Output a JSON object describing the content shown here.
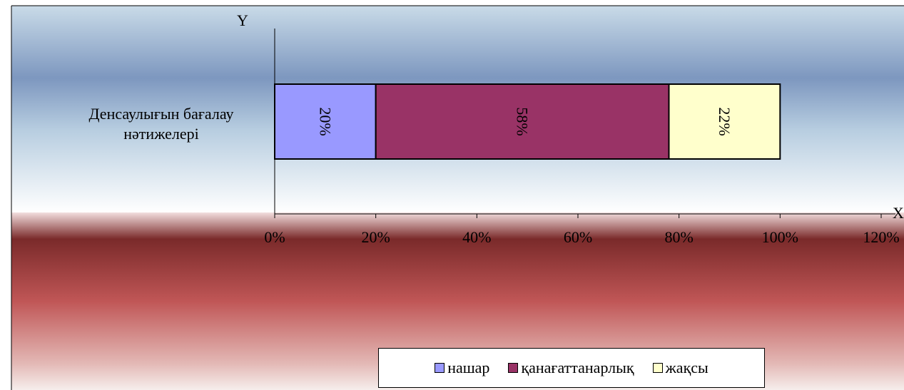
{
  "chart_data": {
    "type": "bar",
    "orientation": "horizontal",
    "stacked": true,
    "categories": [
      "Денсаулығын бағалау нәтижелері"
    ],
    "series": [
      {
        "name": "нашар",
        "values": [
          20
        ],
        "color": "#9999ff",
        "label": "20%"
      },
      {
        "name": "қанағаттанарлық",
        "values": [
          58
        ],
        "color": "#993366",
        "label": "58%"
      },
      {
        "name": "жақсы",
        "values": [
          22
        ],
        "color": "#ffffcc",
        "label": "22%"
      }
    ],
    "xlim": [
      0,
      120
    ],
    "xticks": [
      "0%",
      "20%",
      "40%",
      "60%",
      "80%",
      "100%",
      "120%"
    ],
    "xlabel": "X",
    "ylabel": "Y",
    "legend_position": "bottom",
    "grid": false
  }
}
